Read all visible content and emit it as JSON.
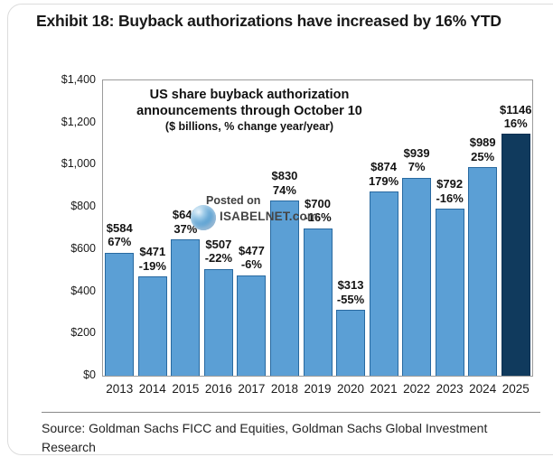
{
  "page": {
    "exhibit_title": "Exhibit 18: Buyback authorizations have increased by 16% YTD",
    "source_line": "Source: Goldman Sachs FICC and Equities, Goldman Sachs Global Investment Research"
  },
  "watermark": {
    "line1": "Posted on",
    "line2": "ISABELNET.com",
    "icon": "globe-icon"
  },
  "chart_data": {
    "type": "bar",
    "title_line1": "US share buyback authorization",
    "title_line2": "announcements through October 10",
    "subtitle": "($ billions, % change year/year)",
    "categories": [
      "2013",
      "2014",
      "2015",
      "2016",
      "2017",
      "2018",
      "2019",
      "2020",
      "2021",
      "2022",
      "2023",
      "2024",
      "2025"
    ],
    "values": [
      584,
      471,
      647,
      507,
      477,
      830,
      700,
      313,
      874,
      939,
      792,
      989,
      1146
    ],
    "value_labels": [
      "$584",
      "$471",
      "$647",
      "$507",
      "$477",
      "$830",
      "$700",
      "$313",
      "$874",
      "$939",
      "$792",
      "$989",
      "$1146"
    ],
    "pct_change_labels": [
      "67%",
      "-19%",
      "37%",
      "-22%",
      "-6%",
      "74%",
      "-16%",
      "-55%",
      "179%",
      "7%",
      "-16%",
      "25%",
      "16%"
    ],
    "ylim": [
      0,
      1400
    ],
    "ytick_labels_top_to_bottom": [
      "$1,400",
      "$1,200",
      "$1,000",
      "$800",
      "$600",
      "$400",
      "$200",
      "$0"
    ],
    "grid": false,
    "legend": "none",
    "highlight_index": 12,
    "colors": {
      "bar_fill": "#5b9fd5",
      "bar_border": "#2869a0",
      "highlight_fill": "#103a5d",
      "highlight_border": "#0d3153",
      "plot_border": "#9b9b9b"
    }
  }
}
